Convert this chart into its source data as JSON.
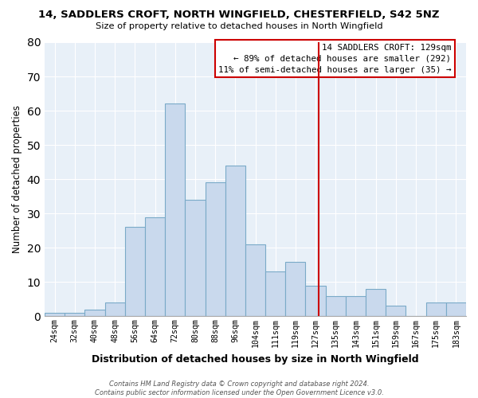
{
  "title": "14, SADDLERS CROFT, NORTH WINGFIELD, CHESTERFIELD, S42 5NZ",
  "subtitle": "Size of property relative to detached houses in North Wingfield",
  "xlabel": "Distribution of detached houses by size in North Wingfield",
  "ylabel": "Number of detached properties",
  "bin_labels": [
    "24sqm",
    "32sqm",
    "40sqm",
    "48sqm",
    "56sqm",
    "64sqm",
    "72sqm",
    "80sqm",
    "88sqm",
    "96sqm",
    "104sqm",
    "111sqm",
    "119sqm",
    "127sqm",
    "135sqm",
    "143sqm",
    "151sqm",
    "159sqm",
    "167sqm",
    "175sqm",
    "183sqm"
  ],
  "bar_heights": [
    1,
    1,
    2,
    4,
    26,
    29,
    62,
    34,
    39,
    44,
    21,
    13,
    16,
    9,
    6,
    6,
    8,
    3,
    0,
    4,
    4
  ],
  "bar_color": "#c9d9ed",
  "bar_edgecolor": "#7aaac8",
  "plot_bg_color": "#e8f0f8",
  "grid_color": "#ffffff",
  "vline_color": "#cc0000",
  "annotation_title": "14 SADDLERS CROFT: 129sqm",
  "annotation_line1": "← 89% of detached houses are smaller (292)",
  "annotation_line2": "11% of semi-detached houses are larger (35) →",
  "annotation_box_color": "white",
  "annotation_box_edgecolor": "#cc0000",
  "footer_line1": "Contains HM Land Registry data © Crown copyright and database right 2024.",
  "footer_line2": "Contains public sector information licensed under the Open Government Licence v3.0.",
  "ylim": [
    0,
    80
  ],
  "yticks": [
    0,
    10,
    20,
    30,
    40,
    50,
    60,
    70,
    80
  ],
  "figsize": [
    6.0,
    5.0
  ],
  "dpi": 100,
  "vline_bar_index": 13.15
}
